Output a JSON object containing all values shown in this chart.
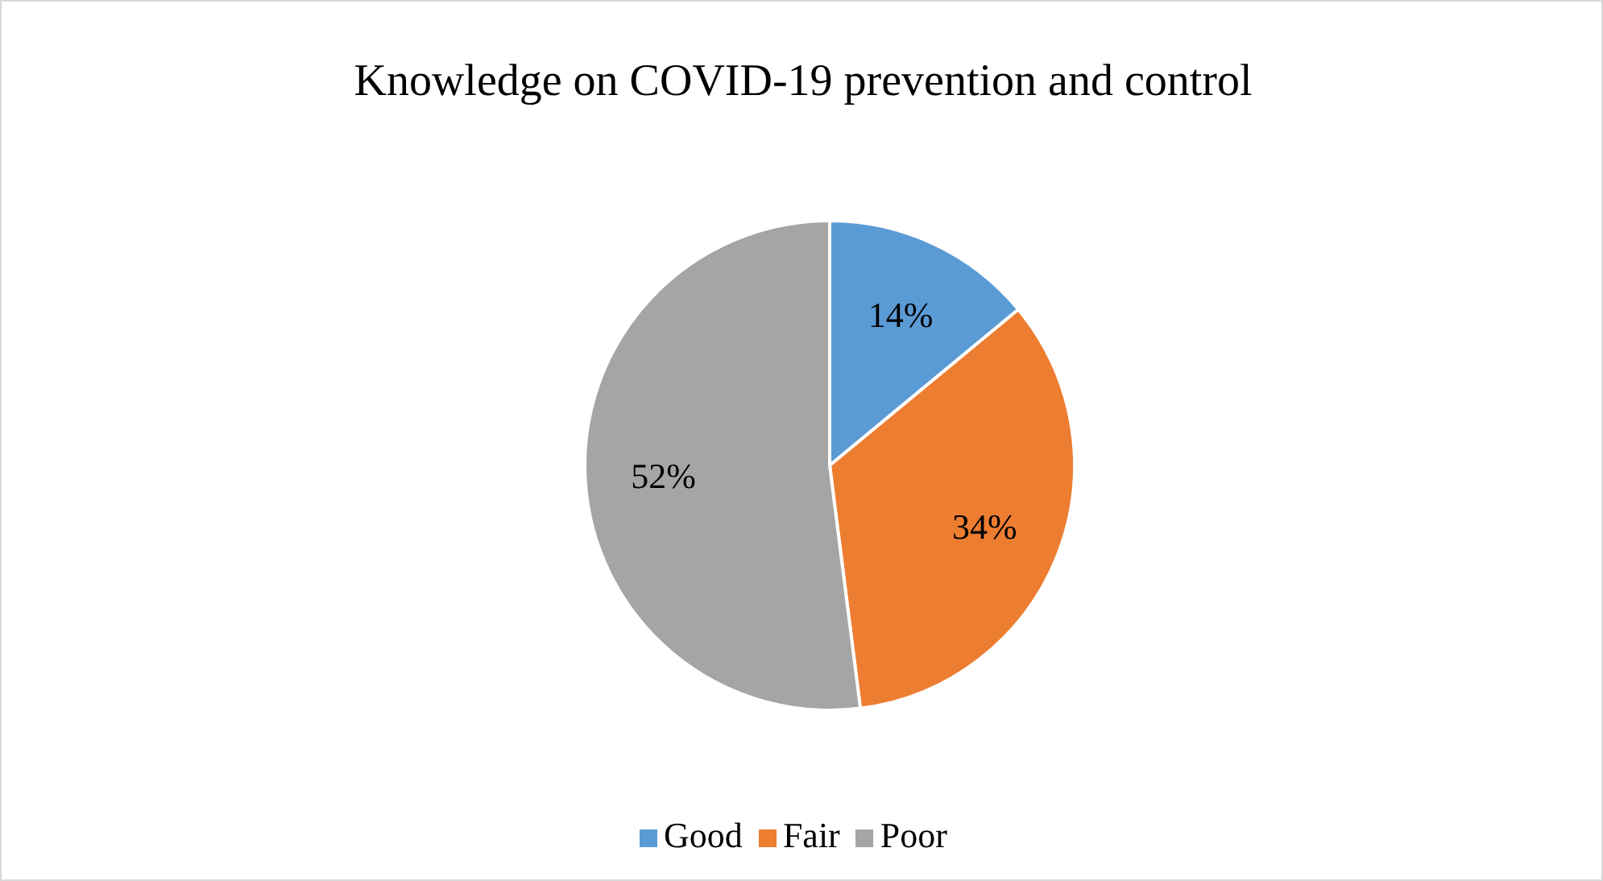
{
  "chart_data": {
    "type": "pie",
    "title": "Knowledge on COVID-19 prevention and control",
    "categories": [
      "Good",
      "Fair",
      "Poor"
    ],
    "values": [
      14,
      34,
      52
    ],
    "value_labels": [
      "14%",
      "34%",
      "52%"
    ],
    "colors": [
      "#5b9bd5",
      "#ed7d31",
      "#a5a5a5"
    ],
    "legend": "bottom"
  }
}
